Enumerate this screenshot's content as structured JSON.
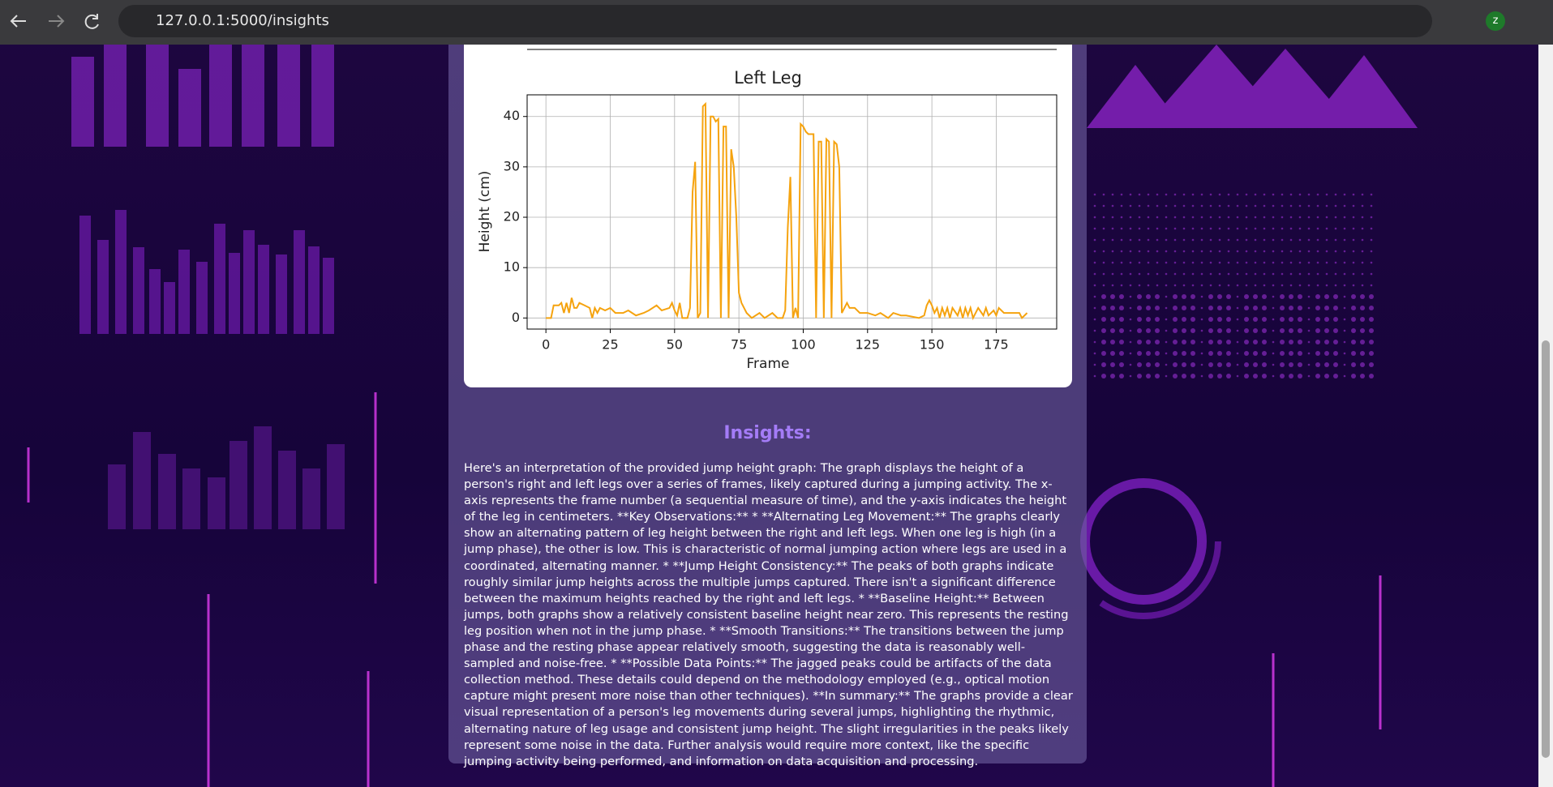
{
  "browser": {
    "url": "127.0.0.1:5000/insights",
    "profile": "z"
  },
  "chart_data": {
    "type": "line",
    "title": "Left Leg",
    "x_label": "Frame",
    "y_label": "Height (cm)",
    "x": [
      0,
      2,
      3,
      5,
      6,
      7,
      8,
      9,
      10,
      11,
      12,
      13,
      15,
      17,
      18,
      19,
      20,
      21,
      23,
      25,
      27,
      30,
      32,
      35,
      38,
      40,
      43,
      45,
      48,
      49,
      50,
      51,
      52,
      53,
      54,
      55,
      56,
      57,
      58,
      59,
      60,
      61,
      62,
      63,
      64,
      65,
      66,
      67,
      68,
      69,
      70,
      71,
      72,
      73,
      74,
      75,
      76,
      78,
      80,
      83,
      85,
      88,
      90,
      92,
      93,
      94,
      95,
      96,
      97,
      98,
      99,
      100,
      101,
      102,
      104,
      105,
      106,
      107,
      108,
      109,
      110,
      111,
      112,
      113,
      114,
      115,
      116,
      117,
      118,
      120,
      122,
      125,
      128,
      130,
      133,
      135,
      138,
      140,
      145,
      147,
      148,
      149,
      150,
      151,
      152,
      153,
      154,
      155,
      156,
      157,
      158,
      160,
      161,
      162,
      163,
      164,
      165,
      166,
      168,
      170,
      171,
      172,
      174,
      175,
      176,
      178,
      180,
      182,
      184,
      185,
      187
    ],
    "values": [
      0,
      0,
      2.5,
      2.5,
      3,
      1,
      3,
      1,
      4,
      2,
      2,
      3,
      2.5,
      2,
      0,
      2,
      1,
      2,
      1.5,
      2,
      1,
      1,
      1.5,
      0.5,
      1,
      1.5,
      2.5,
      1.5,
      2,
      3,
      1.5,
      0.5,
      3,
      0,
      0,
      0,
      2,
      25,
      31,
      0,
      1,
      42,
      42.5,
      0,
      40,
      40,
      39,
      39.5,
      0,
      38,
      38,
      0,
      33.5,
      30,
      20,
      5,
      3,
      1,
      0,
      1,
      0,
      1,
      0,
      0,
      1.5,
      18,
      28,
      0,
      2,
      0,
      38.5,
      38,
      37,
      36.5,
      36.5,
      0,
      35,
      35,
      0,
      35.5,
      35,
      0,
      35,
      34.5,
      30,
      1,
      2,
      3,
      2,
      2,
      1,
      1,
      0.5,
      1,
      0,
      1,
      0.5,
      0.5,
      0,
      0.5,
      2.5,
      3.5,
      2.5,
      1,
      2,
      0,
      2,
      0.5,
      2,
      0,
      2,
      0.5,
      2,
      0,
      2,
      0.5,
      2,
      0,
      2,
      0.5,
      2,
      0.5,
      1.5,
      0.5,
      2,
      1,
      1,
      1,
      1,
      0,
      1
    ],
    "color": "#f5a30f",
    "xlim": [
      -7.3,
      198.5
    ],
    "ylim": [
      -2.2,
      44.3
    ],
    "xticks": [
      0,
      25,
      50,
      75,
      100,
      125,
      150,
      175
    ],
    "yticks": [
      0,
      10,
      20,
      30,
      40
    ],
    "grid": true
  },
  "insights": {
    "title": "Insights:",
    "text": "Here's an interpretation of the provided jump height graph: The graph displays the height of a person's right and left legs over a series of frames, likely captured during a jumping activity. The x-axis represents the frame number (a sequential measure of time), and the y-axis indicates the height of the leg in centimeters. **Key Observations:** * **Alternating Leg Movement:** The graphs clearly show an alternating pattern of leg height between the right and left legs. When one leg is high (in a jump phase), the other is low. This is characteristic of normal jumping action where legs are used in a coordinated, alternating manner. * **Jump Height Consistency:** The peaks of both graphs indicate roughly similar jump heights across the multiple jumps captured. There isn't a significant difference between the maximum heights reached by the right and left legs. * **Baseline Height:** Between jumps, both graphs show a relatively consistent baseline height near zero. This represents the resting leg position when not in the jump phase. * **Smooth Transitions:** The transitions between the jump phase and the resting phase appear relatively smooth, suggesting the data is reasonably well-sampled and noise-free. * **Possible Data Points:** The jagged peaks could be artifacts of the data collection method. These details could depend on the methodology employed (e.g., optical motion capture might present more noise than other techniques). **In summary:** The graphs provide a clear visual representation of a person's leg movements during several jumps, highlighting the rhythmic, alternating nature of leg usage and consistent jump height. The slight irregularities in the peaks likely represent some noise in the data. Further analysis would require more context, like the specific jumping activity being performed, and information on data acquisition and processing."
  }
}
